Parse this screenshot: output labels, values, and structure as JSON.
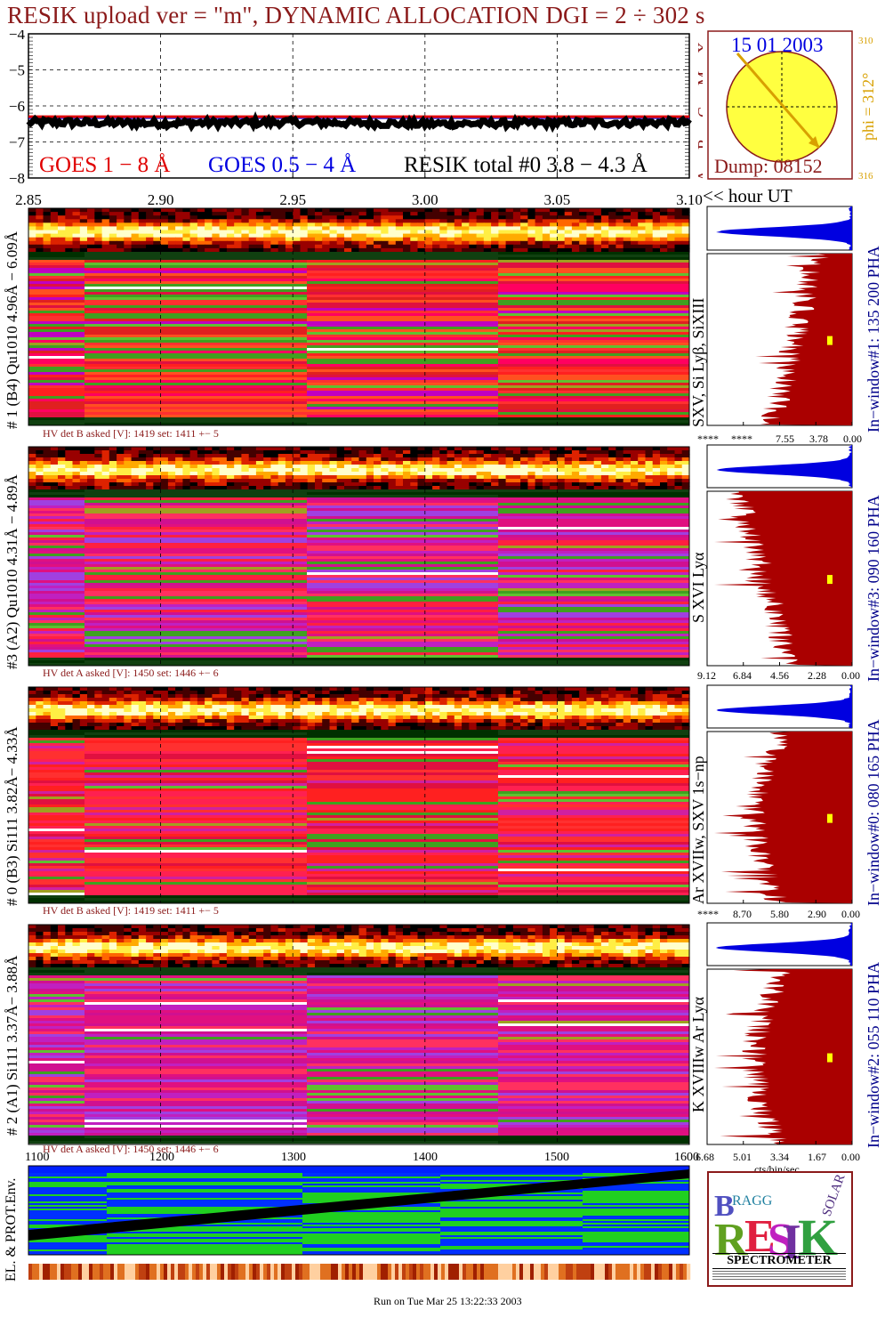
{
  "header": {
    "title": "RESIK upload ver = \"m\", DYNAMIC ALLOCATION  DGI =   2 ÷ 302 s"
  },
  "goes_panel": {
    "yticks": [
      "−4",
      "−5",
      "−6",
      "−7",
      "−8"
    ],
    "legend_goes18": "GOES 1 − 8 Å",
    "legend_goes054": "GOES 0.5 − 4 Å",
    "legend_resik": "RESIK total #0  3.8 − 4.3 Å",
    "flare_class_labels": [
      "X",
      "M",
      "C",
      "B",
      "A"
    ],
    "xticks": [
      "2.85",
      "2.90",
      "2.95",
      "3.00",
      "3.05",
      "3.10"
    ],
    "xunit": "<< hour UT"
  },
  "sun_panel": {
    "date": "15 01 2003",
    "dump": "Dump: 08152",
    "phi": "phi = 312°",
    "phi_small": "310",
    "bottom_small": "316"
  },
  "detectors": [
    {
      "ylabel": "# 1 (B4) Qu1010 4.96Å − 6.09Å",
      "hv": "HV det B asked [V]:  1419 set:  1411  +−   5",
      "lines": "SXV, Si Lyβ, SiXIII",
      "window": "In−window#1:  135 200 PHA",
      "spec_ticks": [
        "****",
        "****",
        "7.55",
        "3.78",
        "0.00"
      ]
    },
    {
      "ylabel": "#3 (A2) Qu1010  4.31Å − 4.89Å",
      "hv": "HV det A asked [V]:  1450 set:  1446  +−   6",
      "lines": "S XVI Lyα",
      "window": "In−window#3:  090 160 PHA",
      "spec_ticks": [
        "9.12",
        "6.84",
        "4.56",
        "2.28",
        "0.00"
      ]
    },
    {
      "ylabel": "# 0 (B3) Si111  3.82Å− 4.33Å",
      "hv": "HV det B asked [V]:  1419 set:  1411  +−   5",
      "lines": "Ar XVIIw, SXV 1s−np",
      "window": "In−window#0:  080 165 PHA",
      "spec_ticks": [
        "****",
        "8.70",
        "5.80",
        "2.90",
        "0.00"
      ]
    },
    {
      "ylabel": "# 2 (A1) Si111  3.37Å− 3.88Å",
      "hv": "HV det A asked [V]:  1450 set:  1446  +−   6",
      "lines": "K XVIIIw  Ar Lyα",
      "window": "In−window#2:  055 110 PHA",
      "spec_ticks": [
        "6.68",
        "5.01",
        "3.34",
        "1.67",
        "0.00"
      ]
    }
  ],
  "spec_xunit": "cts/bin/sec",
  "env_panel": {
    "ylabel": "EL. & PROT.Env.",
    "xticks": [
      "1100",
      "1200",
      "1300",
      "1400",
      "1500",
      "1600"
    ]
  },
  "logo": {
    "letters": "BRAGG RESIK SOLAR",
    "caption": "SPECTROMETER"
  },
  "footer": {
    "run": "Run on Tue Mar 25 13:22:33 2003"
  },
  "chart_data": {
    "type": "line",
    "title": "RESIK upload ver = \"m\", DYNAMIC ALLOCATION  DGI =   2 ÷ 302 s",
    "xlabel": "<< hour UT",
    "xlim": [
      2.85,
      3.1
    ],
    "ylim": [
      -8,
      -4
    ],
    "series": [
      {
        "name": "GOES 1 − 8 Å",
        "x": [
          2.85,
          3.1
        ],
        "y": [
          -6.3,
          -6.3
        ]
      },
      {
        "name": "GOES 0.5 − 4 Å",
        "x": [
          2.85,
          3.1
        ],
        "y": [
          -6.35,
          -6.35
        ]
      },
      {
        "name": "RESIK total #0  3.8 − 4.3 Å",
        "x": [
          2.85,
          2.9,
          2.95,
          3.0,
          3.05,
          3.1
        ],
        "y": [
          -6.45,
          -6.48,
          -6.45,
          -6.5,
          -6.47,
          -6.46
        ]
      }
    ]
  },
  "colors": {
    "title": "#8b1a1a",
    "goes18": "#e00000",
    "goes054": "#0000e0",
    "spectrum": "#aa0000",
    "pha": "#0000e0",
    "sun": "#ffff40"
  }
}
